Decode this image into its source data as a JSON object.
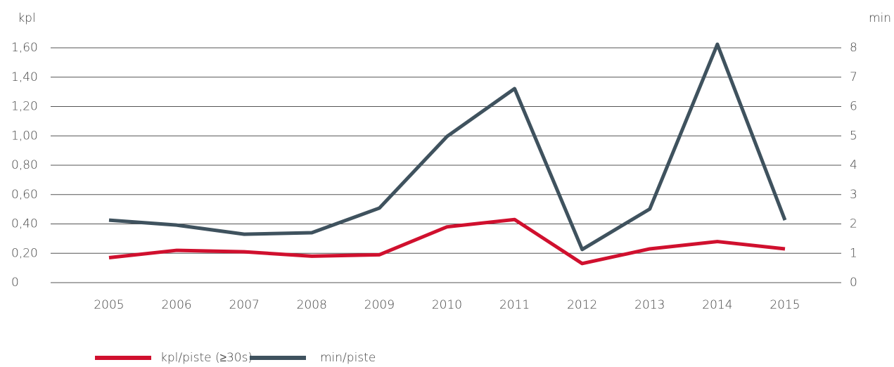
{
  "chart_data": {
    "type": "line",
    "y_label": "kpl",
    "y2_label": "min",
    "categories": [
      "2005",
      "2006",
      "2007",
      "2008",
      "2009",
      "2010",
      "2011",
      "2012",
      "2013",
      "2014",
      "2015"
    ],
    "series": [
      {
        "name": "kpl/piste (≥30s)",
        "color": "#d0102e",
        "values": [
          0.17,
          0.22,
          0.21,
          0.18,
          0.19,
          0.38,
          0.43,
          0.13,
          0.23,
          0.28,
          0.23
        ]
      },
      {
        "name": "min/piste",
        "color": "#3f525e",
        "axis": "y2",
        "values": [
          2.13,
          1.96,
          1.65,
          1.7,
          2.54,
          4.98,
          6.61,
          1.13,
          2.51,
          8.12,
          2.13
        ]
      }
    ],
    "ylim": [
      0,
      1.6
    ],
    "yticks": [
      0,
      {
        "value": 0.2,
        "label": "0,20"
      },
      {
        "value": 0.4,
        "label": "0,40"
      },
      {
        "value": 0.6,
        "label": "0,60"
      },
      {
        "value": 0.8,
        "label": "0,80"
      },
      {
        "value": 1.0,
        "label": "1,00"
      },
      {
        "value": 1.2,
        "label": "1,20"
      },
      {
        "value": 1.4,
        "label": "1,40"
      },
      {
        "value": 1.6,
        "label": "1,60"
      }
    ],
    "y2lim": [
      0,
      8
    ],
    "y2ticks": [
      0,
      1,
      2,
      3,
      4,
      5,
      6,
      7,
      8
    ],
    "grid": true
  }
}
